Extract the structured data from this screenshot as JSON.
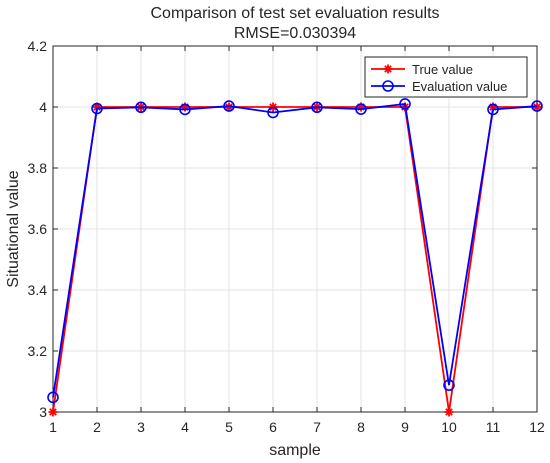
{
  "chart_data": {
    "type": "line",
    "title": "Comparison of test set evaluation results",
    "subtitle": "RMSE=0.030394",
    "xlabel": "sample",
    "ylabel": "Situational value",
    "xlim": [
      1,
      12
    ],
    "ylim": [
      3,
      4.2
    ],
    "x_ticks": [
      "1",
      "2",
      "3",
      "4",
      "5",
      "6",
      "7",
      "8",
      "9",
      "10",
      "11",
      "12"
    ],
    "y_ticks": [
      "3",
      "3.2",
      "3.4",
      "3.6",
      "3.8",
      "4",
      "4.2"
    ],
    "grid": true,
    "legend_position": "top-right",
    "x": [
      1,
      2,
      3,
      4,
      5,
      6,
      7,
      8,
      9,
      10,
      11,
      12
    ],
    "series": [
      {
        "name": "True value",
        "color": "#ff0000",
        "marker": "asterisk",
        "values": [
          3,
          4,
          4,
          4,
          4,
          4,
          4,
          4,
          4,
          3,
          4,
          4
        ]
      },
      {
        "name": "Evaluation value",
        "color": "#0000ff",
        "marker": "circle",
        "values": [
          3.048,
          3.995,
          3.999,
          3.992,
          4.003,
          3.982,
          3.999,
          3.993,
          4.01,
          3.088,
          3.992,
          4.003
        ]
      }
    ]
  }
}
